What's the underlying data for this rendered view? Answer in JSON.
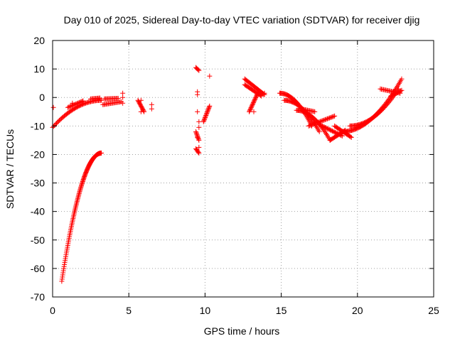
{
  "chart_data": {
    "type": "scatter",
    "title": "Day 010 of 2025, Sidereal Day-to-day VTEC variation (SDTVAR) for receiver djig",
    "xlabel": "GPS time / hours",
    "ylabel": "SDTVAR / TECUs",
    "xlim": [
      0,
      25
    ],
    "ylim": [
      -70,
      20
    ],
    "xticks": [
      0,
      5,
      10,
      15,
      20,
      25
    ],
    "yticks": [
      20,
      10,
      0,
      -10,
      -20,
      -30,
      -40,
      -50,
      -60,
      -70
    ],
    "grid": true,
    "marker": "+",
    "colors": {
      "series": "#ff0000",
      "axis": "#000000",
      "grid": "#a0a0a0"
    },
    "series": [
      {
        "name": "SDTVAR",
        "segments": [
          {
            "x0": 0.0,
            "x1": 3.2,
            "y0": -10.5,
            "y1": -1.0,
            "curve": "concave"
          },
          {
            "x0": 0.6,
            "x1": 3.2,
            "y0": -64.5,
            "y1": -19.5,
            "curve": "concave"
          },
          {
            "x0": 1.0,
            "x1": 2.0,
            "y0": -3.5,
            "y1": -1.2
          },
          {
            "x0": 2.5,
            "x1": 3.1,
            "y0": -0.5,
            "y1": -0.2
          },
          {
            "x0": 3.3,
            "x1": 4.5,
            "y0": -2.5,
            "y1": -1.5
          },
          {
            "x0": 3.4,
            "x1": 4.3,
            "y0": -0.5,
            "y1": -0.3
          },
          {
            "x0": 5.6,
            "x1": 6.0,
            "y0": -1.0,
            "y1": -5.0
          },
          {
            "x0": 9.4,
            "x1": 9.6,
            "y0": 10.5,
            "y1": 9.5
          },
          {
            "x0": 9.4,
            "x1": 9.6,
            "y0": -12.0,
            "y1": -15.0
          },
          {
            "x0": 9.4,
            "x1": 9.6,
            "y0": -18.0,
            "y1": -19.5
          },
          {
            "x0": 9.9,
            "x1": 10.3,
            "y0": -8.5,
            "y1": -3.0
          },
          {
            "x0": 12.6,
            "x1": 13.9,
            "y0": 6.5,
            "y1": 1.0
          },
          {
            "x0": 12.6,
            "x1": 13.7,
            "y0": 4.5,
            "y1": 0.5
          },
          {
            "x0": 12.9,
            "x1": 13.5,
            "y0": -5.0,
            "y1": 2.0
          },
          {
            "x0": 14.9,
            "x1": 17.0,
            "y0": 1.5,
            "y1": -10.0,
            "curve": "convex"
          },
          {
            "x0": 15.2,
            "x1": 17.5,
            "y0": -1.0,
            "y1": -12.0,
            "curve": "convex"
          },
          {
            "x0": 16.0,
            "x1": 18.2,
            "y0": -4.5,
            "y1": -15.0,
            "curve": "convex"
          },
          {
            "x0": 16.3,
            "x1": 17.2,
            "y0": -4.0,
            "y1": -5.0
          },
          {
            "x0": 16.8,
            "x1": 18.5,
            "y0": -10.0,
            "y1": -6.5
          },
          {
            "x0": 17.5,
            "x1": 19.0,
            "y0": -9.5,
            "y1": -13.5
          },
          {
            "x0": 18.2,
            "x1": 19.2,
            "y0": -15.0,
            "y1": -11.5
          },
          {
            "x0": 18.5,
            "x1": 19.6,
            "y0": -10.0,
            "y1": -14.0
          },
          {
            "x0": 19.0,
            "x1": 22.9,
            "y0": -12.0,
            "y1": 6.5,
            "curve": "convex"
          },
          {
            "x0": 19.5,
            "x1": 22.7,
            "y0": -10.0,
            "y1": 3.0,
            "curve": "convex"
          },
          {
            "x0": 21.5,
            "x1": 22.8,
            "y0": 3.0,
            "y1": 1.5
          },
          {
            "x0": 22.2,
            "x1": 22.9,
            "y0": 0.5,
            "y1": 2.5
          }
        ],
        "points": [
          [
            0.05,
            -3.5
          ],
          [
            1.3,
            -2.0
          ],
          [
            4.6,
            1.5
          ],
          [
            4.6,
            0.0
          ],
          [
            4.6,
            -2.0
          ],
          [
            5.8,
            -1.0
          ],
          [
            5.8,
            -5.0
          ],
          [
            6.5,
            -2.5
          ],
          [
            6.5,
            -4.0
          ],
          [
            9.5,
            2.0
          ],
          [
            9.5,
            1.0
          ],
          [
            9.5,
            -5.0
          ],
          [
            9.6,
            -8.5
          ],
          [
            9.6,
            -10.5
          ],
          [
            9.5,
            -14.0
          ],
          [
            9.6,
            -17.5
          ],
          [
            10.3,
            7.5
          ],
          [
            13.9,
            1.5
          ],
          [
            13.2,
            -5.0
          ]
        ]
      }
    ]
  }
}
